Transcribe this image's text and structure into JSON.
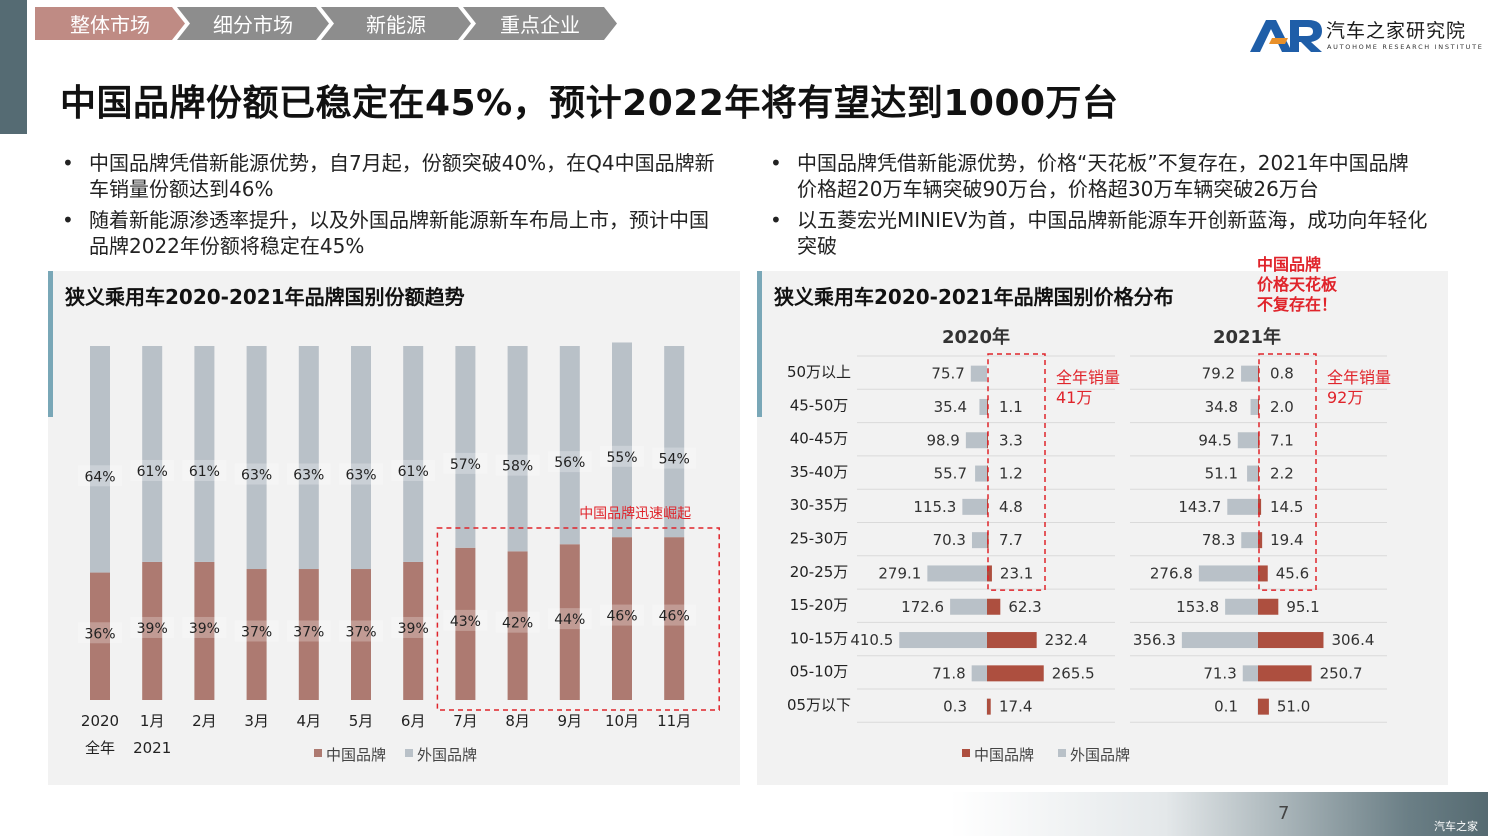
{
  "nav": {
    "items": [
      {
        "label": "整体市场",
        "active": true
      },
      {
        "label": "细分市场",
        "active": false
      },
      {
        "label": "新能源",
        "active": false
      },
      {
        "label": "重点企业",
        "active": false
      }
    ],
    "active_color": "#bf8b84",
    "inactive_color": "#8d8d8d"
  },
  "logo": {
    "cn": "汽车之家研究院",
    "en": "AUTOHOME RESEARCH INSTITUTE"
  },
  "title": "中国品牌份额已稳定在45%，预计2022年将有望达到1000万台",
  "bullets_left": [
    "中国品牌凭借新能源优势，自7月起，份额突破40%，在Q4中国品牌新车销量份额达到46%",
    "随着新能源渗透率提升，以及外国品牌新能源新车布局上市，预计中国品牌2022年份额将稳定在45%"
  ],
  "bullets_right": [
    "中国品牌凭借新能源优势，价格“天花板”不复存在，2021年中国品牌价格超20万车辆突破90万台，价格超30万车辆突破26万台",
    "以五菱宏光MINIEV为首，中国品牌新能源车开创新蓝海，成功向年轻化突破"
  ],
  "chart_data": [
    {
      "type": "bar",
      "stacked": true,
      "title": "狭义乘用车2020-2021年品牌国别份额趋势",
      "categories": [
        "2020全年",
        "1月",
        "2月",
        "3月",
        "4月",
        "5月",
        "6月",
        "7月",
        "8月",
        "9月",
        "10月",
        "11月"
      ],
      "category_lines": [
        [
          "2020",
          "全年"
        ],
        [
          "1月",
          "2021"
        ],
        [
          "2月"
        ],
        [
          "3月"
        ],
        [
          "4月"
        ],
        [
          "5月"
        ],
        [
          "6月"
        ],
        [
          "7月"
        ],
        [
          "8月"
        ],
        [
          "9月"
        ],
        [
          "10月"
        ],
        [
          "11月"
        ]
      ],
      "series": [
        {
          "name": "中国品牌",
          "values": [
            36,
            39,
            39,
            37,
            37,
            37,
            39,
            43,
            42,
            44,
            46,
            46
          ],
          "labels": [
            "36%",
            "39%",
            "39%",
            "37%",
            "37%",
            "37%",
            "39%",
            "43%",
            "42%",
            "44%",
            "46%",
            "46%"
          ],
          "color": "#ad7a71"
        },
        {
          "name": "外国品牌",
          "values": [
            64,
            61,
            61,
            63,
            63,
            63,
            61,
            57,
            58,
            56,
            55,
            54
          ],
          "labels": [
            "64%",
            "61%",
            "61%",
            "63%",
            "63%",
            "63%",
            "61%",
            "57%",
            "58%",
            "56%",
            "55%",
            "54%"
          ],
          "color": "#b9c1c8"
        }
      ],
      "ylim": [
        0,
        100
      ],
      "legend": "bottom",
      "annotation": {
        "text": "中国品牌迅速崛起",
        "from_index": 7,
        "to_index": 11,
        "color": "#e0242b"
      }
    },
    {
      "type": "bar",
      "orientation": "horizontal",
      "title": "狭义乘用车2020-2021年品牌国别价格分布",
      "categories": [
        "50万以上",
        "45-50万",
        "40-45万",
        "35-40万",
        "30-35万",
        "25-30万",
        "20-25万",
        "15-20万",
        "10-15万",
        "05-10万",
        "05万以下"
      ],
      "panels": [
        {
          "year": "2020年",
          "foreign": [
            75.7,
            35.4,
            98.9,
            55.7,
            115.3,
            70.3,
            279.1,
            172.6,
            410.5,
            71.8,
            0.3
          ],
          "chinese": [
            null,
            1.1,
            3.3,
            1.2,
            4.8,
            7.7,
            23.1,
            62.3,
            232.4,
            265.5,
            17.4
          ],
          "box_note": "全年销量\n41万"
        },
        {
          "year": "2021年",
          "foreign": [
            79.2,
            34.8,
            94.5,
            51.1,
            143.7,
            78.3,
            276.8,
            153.8,
            356.3,
            71.3,
            0.1
          ],
          "chinese": [
            0.8,
            2.0,
            7.1,
            2.2,
            14.5,
            19.4,
            45.6,
            95.1,
            306.4,
            250.7,
            51.0
          ],
          "box_note": "全年销量\n92万"
        }
      ],
      "series": [
        {
          "name": "中国品牌",
          "color": "#ad4f3f"
        },
        {
          "name": "外国品牌",
          "color": "#b9c1c8"
        }
      ],
      "legend": "bottom",
      "callout": "中国品牌\n价格天花板\n不复存在！",
      "annotation_color": "#e0242b"
    }
  ],
  "page_number": "7",
  "watermark": "汽车之家"
}
